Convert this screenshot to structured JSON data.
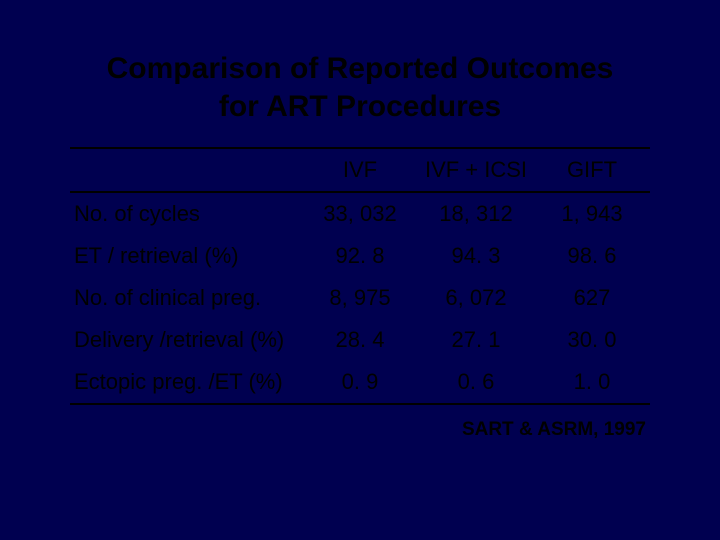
{
  "background_color": "#000050",
  "text_color": "#000000",
  "title": {
    "line1": "Comparison of Reported Outcomes",
    "line2": "for ART Procedures",
    "fontsize": 30,
    "fontweight": "bold"
  },
  "table": {
    "type": "table",
    "fontsize": 22,
    "border_color": "#000000",
    "border_width": 2,
    "columns": [
      "IVF",
      "IVF + ICSI",
      "GIFT"
    ],
    "row_labels": [
      "No. of cycles",
      "ET / retrieval (%)",
      "No. of clinical preg.",
      "Delivery /retrieval (%)",
      "Ectopic preg. /ET (%)"
    ],
    "rows": [
      [
        "33, 032",
        "18, 312",
        "1, 943"
      ],
      [
        "92. 8",
        "94. 3",
        "98. 6"
      ],
      [
        "8, 975",
        "6, 072",
        "627"
      ],
      [
        "28. 4",
        "27. 1",
        "30. 0"
      ],
      [
        "0. 9",
        "0. 6",
        "1. 0"
      ]
    ],
    "col_widths_pct": [
      40,
      20,
      20,
      20
    ],
    "cell_align": "center",
    "label_align": "left"
  },
  "footnote": {
    "text": "SART & ASRM, 1997",
    "fontsize": 19,
    "fontweight": "bold",
    "align": "right"
  }
}
